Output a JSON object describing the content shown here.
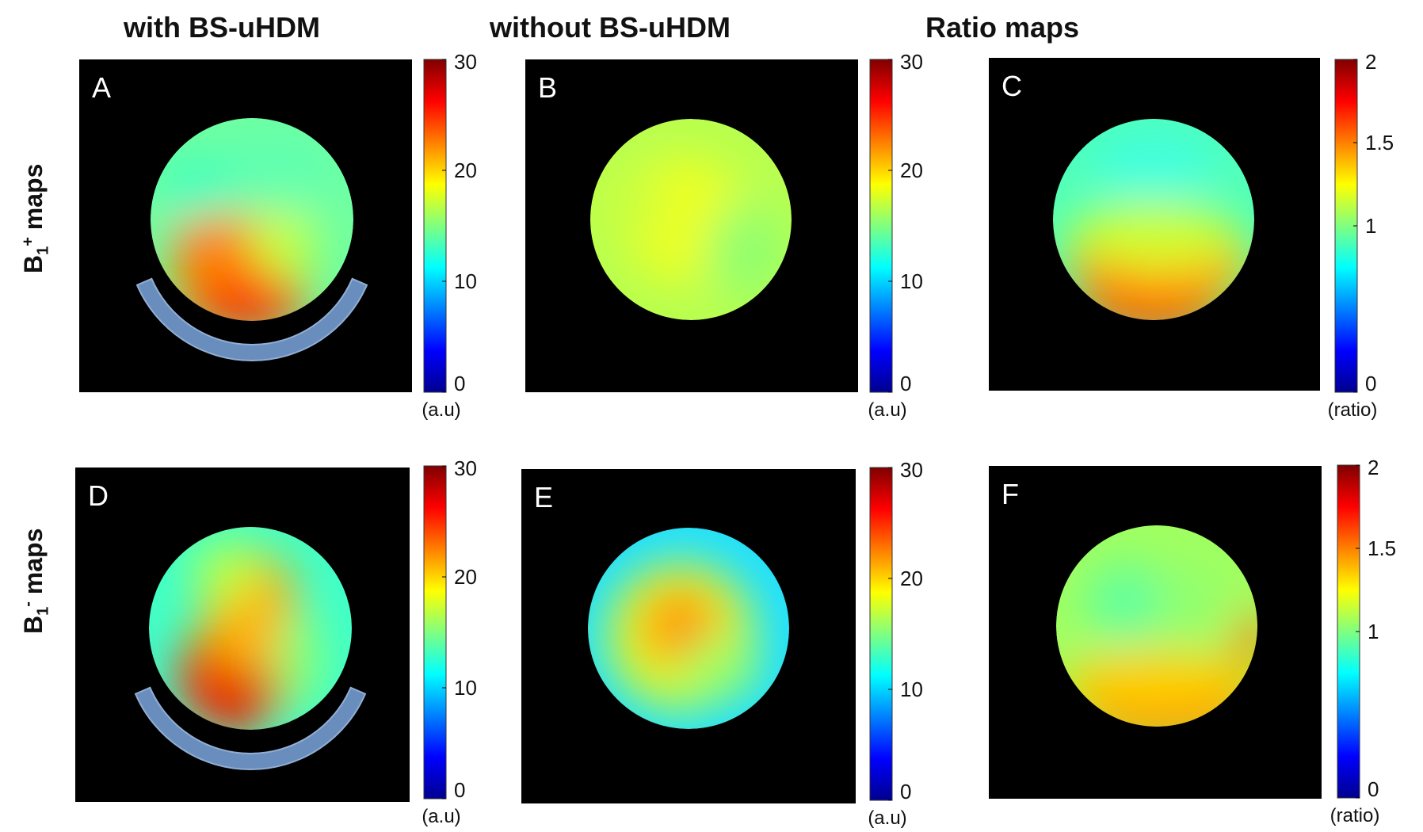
{
  "columns": [
    "with BS-uHDM",
    "without BS-uHDM",
    "Ratio maps"
  ],
  "rows": {
    "plus": {
      "prefix": "B",
      "sub": "1",
      "sup": "+",
      "suffix": " maps"
    },
    "minus": {
      "prefix": "B",
      "sub": "1",
      "sup": "-",
      "suffix": " maps"
    }
  },
  "panels": [
    {
      "label": "A",
      "colorbar": {
        "ticks": [
          "30",
          "20",
          "10",
          "0"
        ],
        "unit": "(a.u)",
        "max": 30
      },
      "map": "B1+ with BS-uHDM",
      "pad": true
    },
    {
      "label": "B",
      "colorbar": {
        "ticks": [
          "30",
          "20",
          "10",
          "0"
        ],
        "unit": "(a.u)",
        "max": 30
      },
      "map": "B1+ without BS-uHDM",
      "pad": false
    },
    {
      "label": "C",
      "colorbar": {
        "ticks": [
          "2",
          "1.5",
          "1",
          "0"
        ],
        "unit": "(ratio)",
        "max": 2
      },
      "map": "B1+ ratio",
      "pad": false
    },
    {
      "label": "D",
      "colorbar": {
        "ticks": [
          "30",
          "20",
          "10",
          "0"
        ],
        "unit": "(a.u)",
        "max": 30
      },
      "map": "B1- with BS-uHDM",
      "pad": true
    },
    {
      "label": "E",
      "colorbar": {
        "ticks": [
          "30",
          "20",
          "10",
          "0"
        ],
        "unit": "(a.u)",
        "max": 30
      },
      "map": "B1- without BS-uHDM",
      "pad": false
    },
    {
      "label": "F",
      "colorbar": {
        "ticks": [
          "2",
          "1.5",
          "1",
          "0"
        ],
        "unit": "(ratio)",
        "max": 2
      },
      "map": "B1- ratio",
      "pad": false
    }
  ],
  "colors": {
    "background": "#000000",
    "pad": "#6f96c8",
    "jet": [
      "#00008f",
      "#0000ff",
      "#0080ff",
      "#00ffff",
      "#80ff80",
      "#ffff00",
      "#ff8000",
      "#ff0000",
      "#800000"
    ]
  }
}
